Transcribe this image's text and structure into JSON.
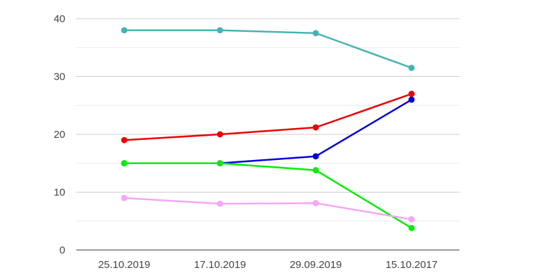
{
  "chart_data": {
    "type": "line",
    "categories": [
      "25.10.2019",
      "17.10.2019",
      "29.09.2019",
      "15.10.2017"
    ],
    "yticks": [
      0,
      10,
      20,
      30,
      40
    ],
    "ylim": [
      0,
      40
    ],
    "grid": true,
    "series": [
      {
        "color": "#46b3b3",
        "values": [
          38.0,
          38.0,
          37.5,
          31.5
        ]
      },
      {
        "color": "#ee0000",
        "values": [
          19.0,
          20.0,
          21.2,
          27.0
        ]
      },
      {
        "color": "#0000dd",
        "values": [
          15.0,
          15.0,
          16.2,
          26.0
        ]
      },
      {
        "color": "#00ee00",
        "values": [
          15.0,
          15.0,
          13.8,
          3.8
        ]
      },
      {
        "color": "#f5a6f5",
        "values": [
          9.0,
          8.0,
          8.1,
          5.3
        ]
      }
    ]
  }
}
